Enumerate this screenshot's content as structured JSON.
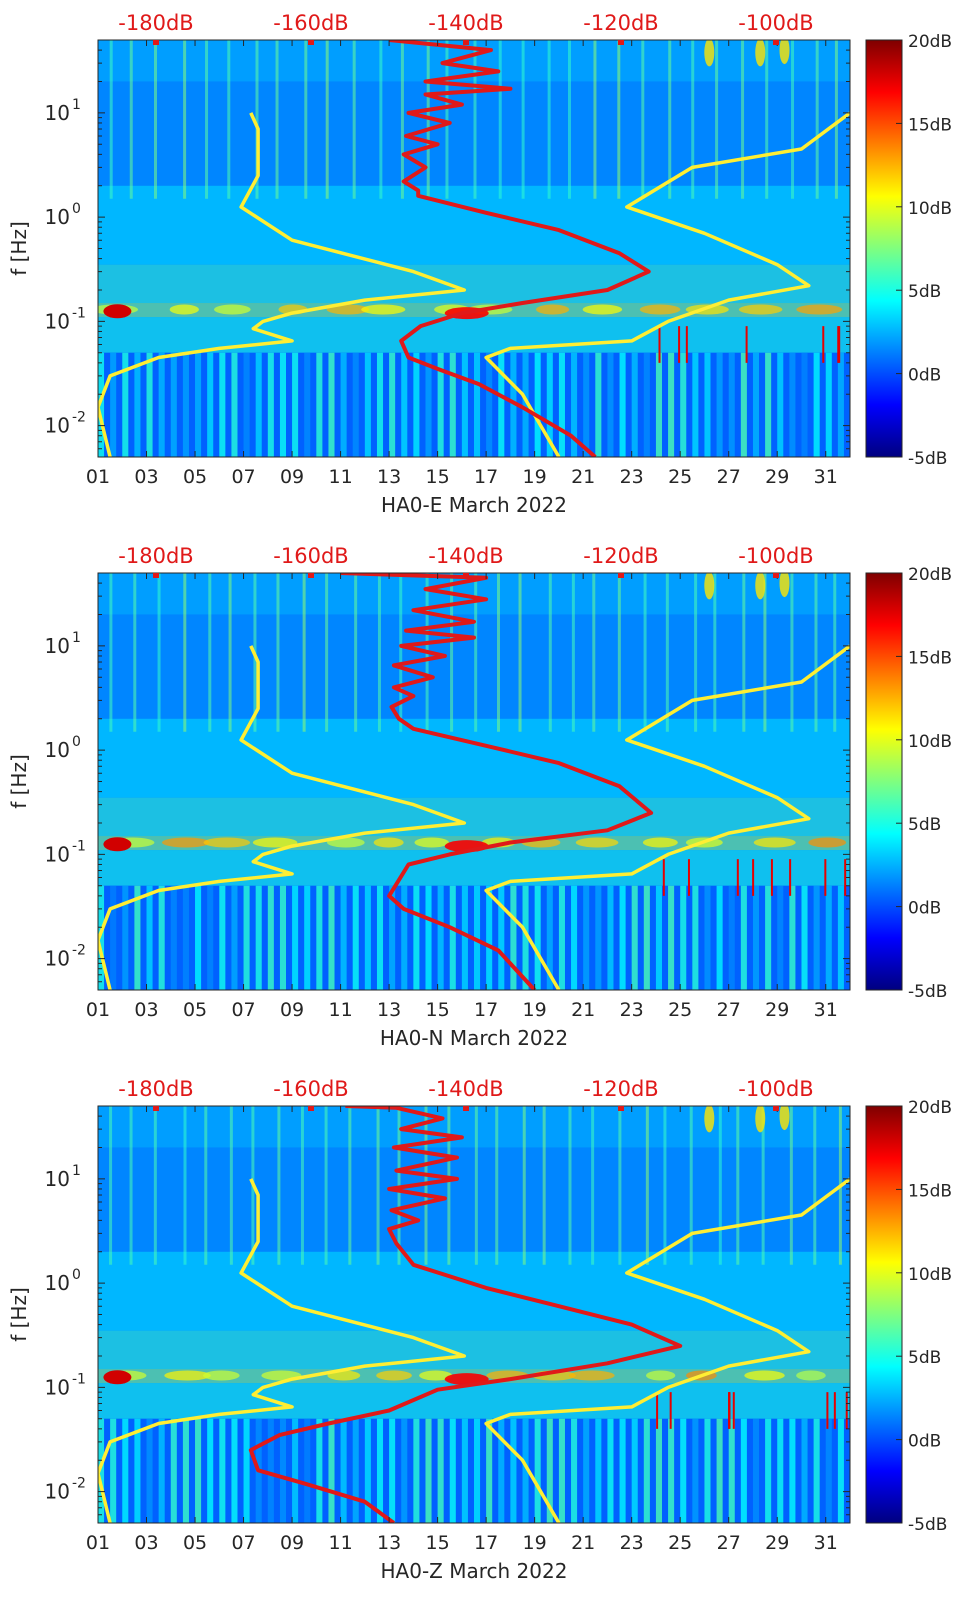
{
  "colors": {
    "red_curve": "#e01919",
    "yellow_curve": "#ffee33",
    "top_axis_text": "#e01919",
    "axis_text": "#262626",
    "jet": [
      "#00007f",
      "#0000ff",
      "#007fff",
      "#00ffff",
      "#7fff7f",
      "#ffff00",
      "#ff7f00",
      "#ff0000",
      "#7f0000"
    ]
  },
  "shared": {
    "ylabel": "f [Hz]",
    "x_ticks": [
      "01",
      "03",
      "05",
      "07",
      "09",
      "11",
      "13",
      "15",
      "17",
      "19",
      "21",
      "23",
      "25",
      "27",
      "29",
      "31"
    ],
    "y_ticks": [
      {
        "label": "10",
        "exp": "1",
        "value": 10
      },
      {
        "label": "10",
        "exp": "0",
        "value": 1
      },
      {
        "label": "10",
        "exp": "-1",
        "value": 0.1
      },
      {
        "label": "10",
        "exp": "-2",
        "value": 0.01
      }
    ],
    "top_ticks": [
      "-180dB",
      "-160dB",
      "-140dB",
      "-120dB",
      "-100dB"
    ],
    "colorbar_ticks": [
      "20dB",
      "15dB",
      "10dB",
      "5dB",
      "0dB",
      "-5dB"
    ]
  },
  "chart_data": [
    {
      "type": "heatmap",
      "title": "",
      "xlabel": "HA0-E March 2022",
      "ylabel": "f [Hz]",
      "x_range_days": [
        1,
        32
      ],
      "y_range_hz": [
        0.005,
        50
      ],
      "y_scale": "log",
      "top_axis": {
        "label_values": [
          -180,
          -160,
          -140,
          -120,
          -100
        ],
        "unit": "dB"
      },
      "colorbar": {
        "range_db": [
          -5,
          20
        ],
        "ticks": [
          20,
          15,
          10,
          5,
          0,
          -5
        ]
      },
      "series": [
        {
          "color": "yellow",
          "points": [
            [
              7.3,
              10
            ],
            [
              7.6,
              7
            ],
            [
              7.6,
              2.5
            ],
            [
              6.9,
              1.25
            ],
            [
              9,
              0.6
            ],
            [
              14,
              0.3
            ],
            [
              16.1,
              0.2
            ],
            [
              12,
              0.16
            ],
            [
              9,
              0.12
            ],
            [
              7.8,
              0.1
            ],
            [
              7.4,
              0.085
            ],
            [
              9,
              0.065
            ],
            [
              6,
              0.055
            ],
            [
              3.5,
              0.045
            ],
            [
              1.5,
              0.03
            ],
            [
              1,
              0.015
            ],
            [
              1.5,
              0.005
            ]
          ]
        },
        {
          "color": "yellow",
          "points": [
            [
              32,
              10
            ],
            [
              30,
              4.5
            ],
            [
              25.5,
              3
            ],
            [
              22.8,
              1.25
            ],
            [
              26,
              0.7
            ],
            [
              29,
              0.35
            ],
            [
              30.3,
              0.22
            ],
            [
              27,
              0.16
            ],
            [
              24.5,
              0.1
            ],
            [
              23,
              0.065
            ],
            [
              18,
              0.055
            ],
            [
              17,
              0.045
            ],
            [
              18.5,
              0.02
            ],
            [
              20,
              0.005
            ]
          ]
        },
        {
          "color": "red",
          "points": [
            [
              13,
              50
            ],
            [
              17.2,
              40
            ],
            [
              15.2,
              30
            ],
            [
              17.5,
              25
            ],
            [
              14.5,
              20
            ],
            [
              18,
              17
            ],
            [
              14.5,
              15
            ],
            [
              16,
              12
            ],
            [
              13.8,
              10
            ],
            [
              15.5,
              8
            ],
            [
              13.7,
              6
            ],
            [
              15,
              5
            ],
            [
              13.6,
              4
            ],
            [
              14.5,
              3
            ],
            [
              13.6,
              2.2
            ],
            [
              14.2,
              1.8
            ],
            [
              14.2,
              1.6
            ],
            [
              17,
              1.1
            ],
            [
              20,
              0.75
            ],
            [
              22.5,
              0.45
            ],
            [
              23.7,
              0.3
            ],
            [
              22,
              0.2
            ],
            [
              18.5,
              0.15
            ],
            [
              16,
              0.12
            ],
            [
              14.3,
              0.09
            ],
            [
              13.5,
              0.065
            ],
            [
              13.8,
              0.045
            ],
            [
              15,
              0.035
            ],
            [
              16.7,
              0.025
            ],
            [
              18.5,
              0.015
            ],
            [
              20.5,
              0.008
            ],
            [
              21.5,
              0.005
            ]
          ]
        }
      ],
      "colorbar_label_fmt": "dB"
    },
    {
      "type": "heatmap",
      "title": "",
      "xlabel": "HA0-N March 2022",
      "ylabel": "f [Hz]",
      "x_range_days": [
        1,
        32
      ],
      "y_range_hz": [
        0.005,
        50
      ],
      "y_scale": "log",
      "top_axis": {
        "label_values": [
          -180,
          -160,
          -140,
          -120,
          -100
        ],
        "unit": "dB"
      },
      "colorbar": {
        "range_db": [
          -5,
          20
        ],
        "ticks": [
          20,
          15,
          10,
          5,
          0,
          -5
        ]
      },
      "series": [
        {
          "color": "yellow",
          "points": [
            [
              7.3,
              10
            ],
            [
              7.6,
              7
            ],
            [
              7.6,
              2.5
            ],
            [
              6.9,
              1.25
            ],
            [
              9,
              0.6
            ],
            [
              14,
              0.3
            ],
            [
              16.1,
              0.2
            ],
            [
              12,
              0.16
            ],
            [
              9,
              0.12
            ],
            [
              7.8,
              0.1
            ],
            [
              7.4,
              0.085
            ],
            [
              9,
              0.065
            ],
            [
              6,
              0.055
            ],
            [
              3.5,
              0.045
            ],
            [
              1.5,
              0.03
            ],
            [
              1,
              0.015
            ],
            [
              1.5,
              0.005
            ]
          ]
        },
        {
          "color": "yellow",
          "points": [
            [
              32,
              10
            ],
            [
              30,
              4.5
            ],
            [
              25.5,
              3
            ],
            [
              22.8,
              1.25
            ],
            [
              26,
              0.7
            ],
            [
              29,
              0.35
            ],
            [
              30.3,
              0.22
            ],
            [
              27,
              0.16
            ],
            [
              24.5,
              0.1
            ],
            [
              23,
              0.065
            ],
            [
              18,
              0.055
            ],
            [
              17,
              0.045
            ],
            [
              18.5,
              0.02
            ],
            [
              20,
              0.005
            ]
          ]
        },
        {
          "color": "red",
          "points": [
            [
              11,
              50
            ],
            [
              17,
              45
            ],
            [
              14.5,
              35
            ],
            [
              17,
              28
            ],
            [
              14,
              22
            ],
            [
              16.5,
              17
            ],
            [
              13.7,
              14
            ],
            [
              16.5,
              12
            ],
            [
              13.5,
              10
            ],
            [
              15.3,
              8
            ],
            [
              13.2,
              6.5
            ],
            [
              14.8,
              5
            ],
            [
              13.2,
              4
            ],
            [
              14,
              3.3
            ],
            [
              13.1,
              2.6
            ],
            [
              13.4,
              2
            ],
            [
              14,
              1.6
            ],
            [
              17,
              1.1
            ],
            [
              20,
              0.75
            ],
            [
              22.5,
              0.45
            ],
            [
              23.8,
              0.25
            ],
            [
              22,
              0.17
            ],
            [
              18,
              0.13
            ],
            [
              15.5,
              0.1
            ],
            [
              13.8,
              0.08
            ],
            [
              13,
              0.04
            ],
            [
              13.6,
              0.03
            ],
            [
              15.5,
              0.02
            ],
            [
              17.5,
              0.012
            ],
            [
              19,
              0.005
            ]
          ]
        }
      ],
      "colorbar_label_fmt": "dB"
    },
    {
      "type": "heatmap",
      "title": "",
      "xlabel": "HA0-Z March 2022",
      "ylabel": "f [Hz]",
      "x_range_days": [
        1,
        32
      ],
      "y_range_hz": [
        0.005,
        50
      ],
      "y_scale": "log",
      "top_axis": {
        "label_values": [
          -180,
          -160,
          -140,
          -120,
          -100
        ],
        "unit": "dB"
      },
      "colorbar": {
        "range_db": [
          -5,
          20
        ],
        "ticks": [
          20,
          15,
          10,
          5,
          0,
          -5
        ]
      },
      "series": [
        {
          "color": "yellow",
          "points": [
            [
              7.3,
              10
            ],
            [
              7.6,
              7
            ],
            [
              7.6,
              2.5
            ],
            [
              6.9,
              1.25
            ],
            [
              9,
              0.6
            ],
            [
              14,
              0.3
            ],
            [
              16.1,
              0.2
            ],
            [
              12,
              0.16
            ],
            [
              9,
              0.12
            ],
            [
              7.8,
              0.1
            ],
            [
              7.4,
              0.085
            ],
            [
              9,
              0.065
            ],
            [
              6,
              0.055
            ],
            [
              3.5,
              0.045
            ],
            [
              1.5,
              0.03
            ],
            [
              1,
              0.015
            ],
            [
              1.5,
              0.005
            ]
          ]
        },
        {
          "color": "yellow",
          "points": [
            [
              32,
              10
            ],
            [
              30,
              4.5
            ],
            [
              25.5,
              3
            ],
            [
              22.8,
              1.25
            ],
            [
              26,
              0.7
            ],
            [
              29,
              0.35
            ],
            [
              30.3,
              0.22
            ],
            [
              27,
              0.16
            ],
            [
              24.5,
              0.1
            ],
            [
              23,
              0.065
            ],
            [
              18,
              0.055
            ],
            [
              17,
              0.045
            ],
            [
              18.5,
              0.02
            ],
            [
              20,
              0.005
            ]
          ]
        },
        {
          "color": "red",
          "points": [
            [
              11.2,
              50
            ],
            [
              13.3,
              48
            ],
            [
              15.2,
              38
            ],
            [
              13.5,
              30
            ],
            [
              16,
              25
            ],
            [
              13.2,
              20
            ],
            [
              15.8,
              16
            ],
            [
              13.3,
              12
            ],
            [
              15.8,
              10
            ],
            [
              13,
              8
            ],
            [
              15.3,
              6.5
            ],
            [
              13.1,
              5
            ],
            [
              14.2,
              4
            ],
            [
              13,
              3.3
            ],
            [
              13.3,
              2.4
            ],
            [
              14,
              1.5
            ],
            [
              17,
              0.9
            ],
            [
              20,
              0.6
            ],
            [
              23,
              0.4
            ],
            [
              25,
              0.25
            ],
            [
              22,
              0.17
            ],
            [
              18,
              0.12
            ],
            [
              15,
              0.095
            ],
            [
              13,
              0.06
            ],
            [
              10.5,
              0.045
            ],
            [
              8.5,
              0.035
            ],
            [
              7.3,
              0.025
            ],
            [
              7.6,
              0.016
            ],
            [
              9.5,
              0.012
            ],
            [
              12,
              0.008
            ],
            [
              13.2,
              0.005
            ]
          ]
        }
      ],
      "colorbar_label_fmt": "dB"
    }
  ]
}
